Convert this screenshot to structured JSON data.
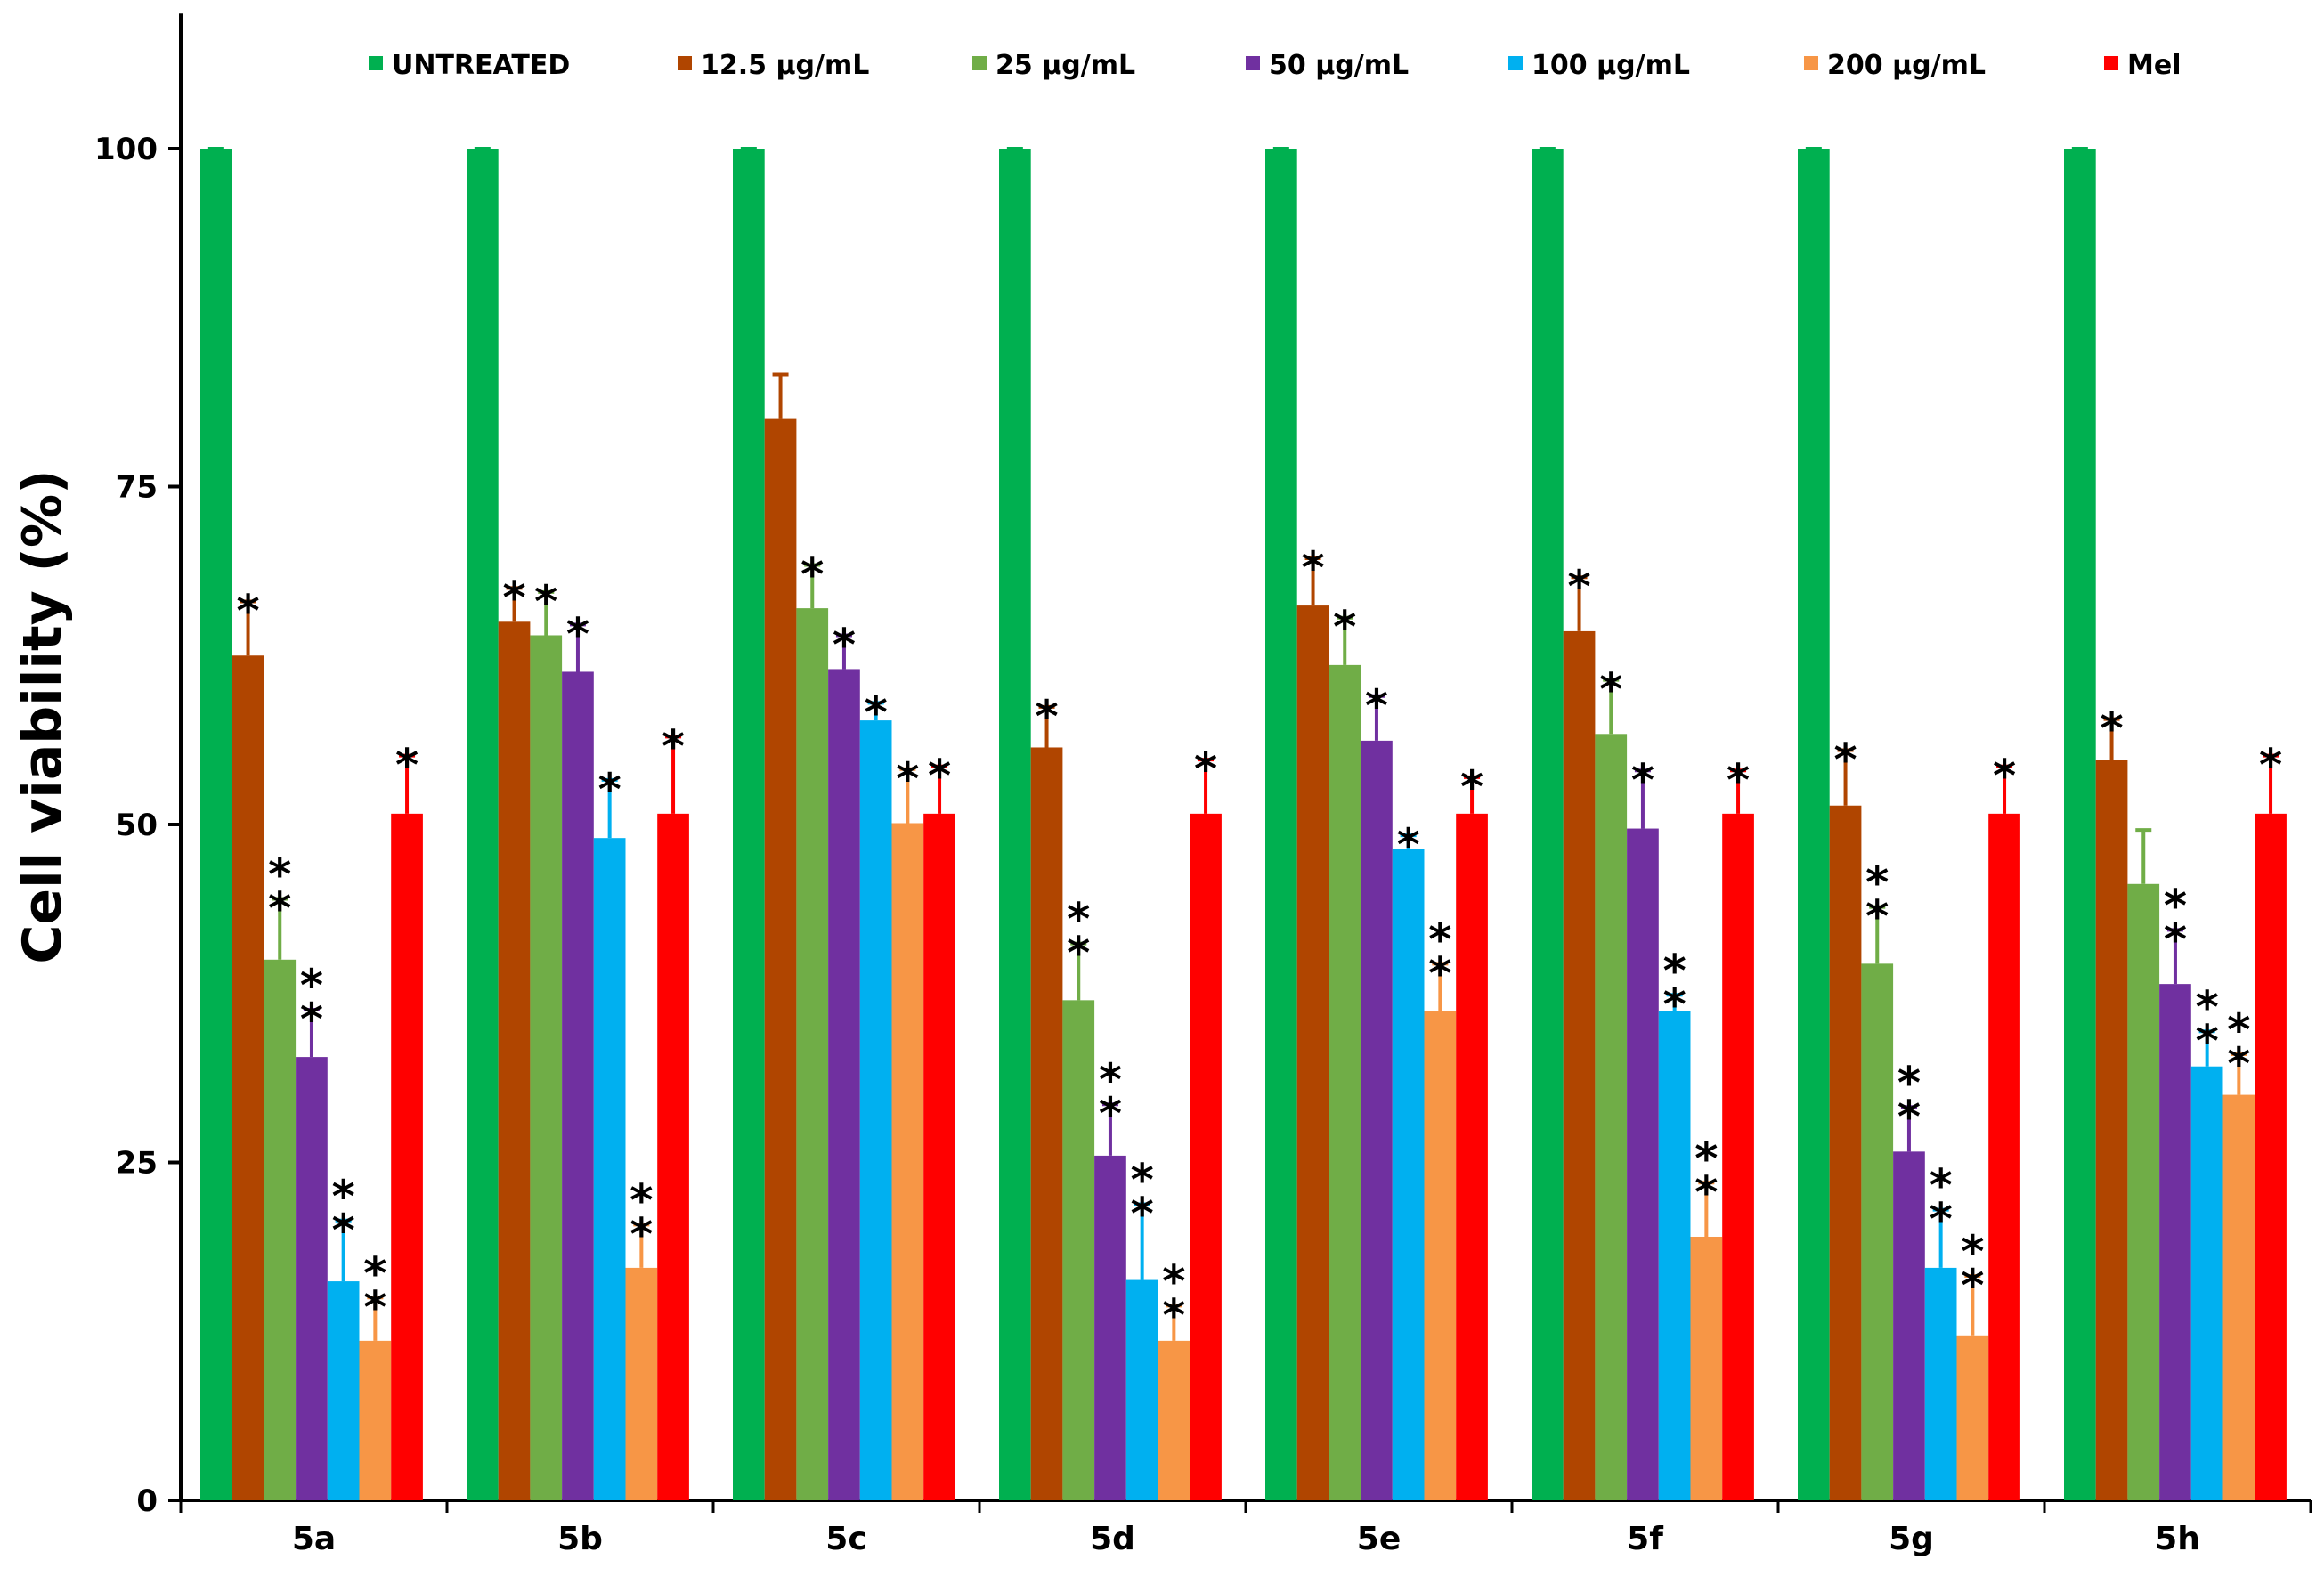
{
  "chart_data": {
    "type": "bar",
    "title": "",
    "xlabel": "",
    "ylabel": "Cell viability (%)",
    "ylim": [
      0,
      110
    ],
    "yticks": [
      0,
      25,
      50,
      75,
      100
    ],
    "grid": false,
    "legend_position": "top",
    "categories": [
      "5a",
      "5b",
      "5c",
      "5d",
      "5e",
      "5f",
      "5g",
      "5h"
    ],
    "series": [
      {
        "name": "UNTREATED",
        "color": "#00b050",
        "values": [
          100,
          100,
          100,
          100,
          100,
          100,
          100,
          100
        ],
        "errors": [
          0,
          0,
          0,
          0,
          0,
          0,
          0,
          0
        ],
        "marks": [
          "",
          "",
          "",
          "",
          "",
          "",
          "",
          ""
        ]
      },
      {
        "name": "12.5 μg/mL",
        "color": "#b04500",
        "values": [
          62.5,
          65,
          80,
          55.7,
          66.2,
          64.3,
          51.4,
          54.8
        ],
        "errors": [
          4,
          2.5,
          3.3,
          3,
          3.5,
          4,
          4.1,
          3
        ],
        "marks": [
          "*",
          "*",
          "",
          "*",
          "*",
          "*",
          "*",
          "*"
        ]
      },
      {
        "name": "25 μg/mL",
        "color": "#70ad47",
        "values": [
          40,
          64,
          66,
          37,
          61.8,
          56.7,
          39.7,
          45.6
        ],
        "errors": [
          4.5,
          3.2,
          3.2,
          4.2,
          3.5,
          4,
          4.2,
          4
        ],
        "marks": [
          "**",
          "*",
          "*",
          "**",
          "*",
          "*",
          "**",
          ""
        ]
      },
      {
        "name": "50 μg/mL",
        "color": "#7030a0",
        "values": [
          32.8,
          61.3,
          61.5,
          25.5,
          56.2,
          49.7,
          25.8,
          38.2
        ],
        "errors": [
          3.5,
          3.5,
          2.5,
          3.8,
          3.3,
          4.3,
          3.3,
          4
        ],
        "marks": [
          "**",
          "*",
          "*",
          "**",
          "*",
          "*",
          "**",
          "**"
        ]
      },
      {
        "name": "100 μg/mL",
        "color": "#00b0f0",
        "values": [
          16.2,
          49,
          57.7,
          16.3,
          48.2,
          36.2,
          17.2,
          32.1
        ],
        "errors": [
          4.5,
          4.3,
          1.3,
          5.6,
          1,
          1.2,
          4.3,
          2.6
        ],
        "marks": [
          "**",
          "*",
          "*",
          "**",
          "*",
          "**",
          "**",
          "**"
        ]
      },
      {
        "name": "200 μg/mL",
        "color": "#f79646",
        "values": [
          11.8,
          17.2,
          50.1,
          11.8,
          36.2,
          19.5,
          12.2,
          30
        ],
        "errors": [
          3.2,
          3.2,
          4,
          2.6,
          3.5,
          4,
          4.4,
          3
        ],
        "marks": [
          "**",
          "**",
          "*",
          "**",
          "**",
          "**",
          "**",
          "**"
        ]
      },
      {
        "name": "Mel",
        "color": "#ff0000",
        "values": [
          50.8,
          50.8,
          50.8,
          50.8,
          50.8,
          50.8,
          50.8,
          50.8
        ],
        "errors": [
          4.3,
          5.7,
          3.5,
          4,
          2.7,
          3.2,
          3.5,
          4.3
        ],
        "marks": [
          "*",
          "*",
          "*",
          "*",
          "*",
          "*",
          "*",
          "*"
        ]
      }
    ]
  }
}
